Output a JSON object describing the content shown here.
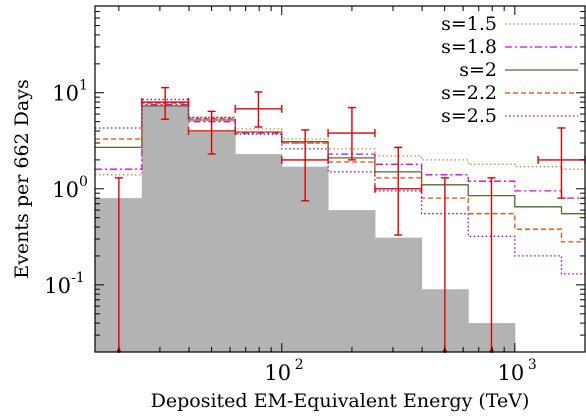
{
  "chart_data": {
    "type": "histogram",
    "xlabel": "Deposited EM-Equivalent Energy (TeV)",
    "ylabel": "Events per 662 Days",
    "xscale": "log",
    "yscale": "log",
    "xlim": [
      15.8,
      2000
    ],
    "ylim": [
      0.02,
      80
    ],
    "x_ticks": [
      {
        "value": 100,
        "base": "10",
        "exp": "2"
      },
      {
        "value": 1000,
        "base": "10",
        "exp": "3"
      }
    ],
    "y_ticks": [
      {
        "value": 0.1,
        "base": "10",
        "exp": "-1"
      },
      {
        "value": 1,
        "base": "10",
        "exp": "0"
      },
      {
        "value": 10,
        "base": "10",
        "exp": "1"
      }
    ],
    "bin_edges": [
      15.8,
      25.1,
      39.8,
      63.1,
      100,
      158,
      251,
      398,
      631,
      1000,
      1585,
      2000
    ],
    "background": {
      "color": "#b3b3b3",
      "values": [
        0.8,
        7.2,
        3.9,
        2.3,
        1.7,
        0.6,
        0.31,
        0.09,
        0.04,
        0.02,
        0.02
      ]
    },
    "series": [
      {
        "name": "s=1.5",
        "color": "#d98a3a",
        "dash": "dot",
        "values": [
          1.4,
          7.8,
          5.6,
          4.2,
          3.3,
          2.6,
          2.2,
          2.0,
          1.8,
          1.7,
          1.6
        ]
      },
      {
        "name": "s=1.8",
        "color": "#e000e0",
        "dash": "dashdot",
        "values": [
          1.6,
          7.5,
          5.0,
          3.8,
          3.0,
          2.3,
          1.8,
          1.4,
          1.2,
          0.95,
          0.8
        ]
      },
      {
        "name": "s=2",
        "color": "#556b2f",
        "dash": "solid",
        "values": [
          2.7,
          7.3,
          5.2,
          3.9,
          3.1,
          2.1,
          1.5,
          1.1,
          0.85,
          0.65,
          0.55
        ]
      },
      {
        "name": "s=2.2",
        "color": "#ff4500",
        "dash": "dash",
        "values": [
          3.3,
          7.8,
          5.4,
          3.9,
          3.0,
          1.9,
          1.3,
          0.8,
          0.55,
          0.38,
          0.28
        ]
      },
      {
        "name": "s=2.5",
        "color": "#9400d3",
        "dash": "dot",
        "values": [
          4.3,
          8.5,
          5.5,
          3.7,
          2.6,
          1.5,
          0.95,
          0.55,
          0.32,
          0.2,
          0.13
        ]
      }
    ],
    "data_points": {
      "color": "#e00000",
      "points": [
        {
          "x": 20,
          "y": 0.02,
          "xlo": 20,
          "xhi": 20,
          "ylo": 0.02,
          "yhi": 1.3
        },
        {
          "x": 31.6,
          "y": 8.0,
          "xlo": 25.1,
          "xhi": 39.8,
          "ylo": 5.3,
          "yhi": 11.3
        },
        {
          "x": 50,
          "y": 4.0,
          "xlo": 39.8,
          "xhi": 63.1,
          "ylo": 2.3,
          "yhi": 6.4
        },
        {
          "x": 79.4,
          "y": 6.8,
          "xlo": 63.1,
          "xhi": 100,
          "ylo": 4.4,
          "yhi": 10.2
        },
        {
          "x": 126,
          "y": 2.0,
          "xlo": 100,
          "xhi": 158,
          "ylo": 0.75,
          "yhi": 4.1
        },
        {
          "x": 200,
          "y": 3.8,
          "xlo": 158,
          "xhi": 251,
          "ylo": 2.0,
          "yhi": 7.0
        },
        {
          "x": 316,
          "y": 1.0,
          "xlo": 251,
          "xhi": 398,
          "ylo": 0.33,
          "yhi": 2.7
        },
        {
          "x": 501,
          "y": 0.02,
          "xlo": 501,
          "xhi": 501,
          "ylo": 0.02,
          "yhi": 1.3
        },
        {
          "x": 794,
          "y": 0.02,
          "xlo": 794,
          "xhi": 794,
          "ylo": 0.02,
          "yhi": 1.3
        },
        {
          "x": 1585,
          "y": 2.0,
          "xlo": 1259,
          "xhi": 2000,
          "ylo": 0.8,
          "yhi": 4.3
        }
      ]
    },
    "legend": "top-right",
    "grid": false
  }
}
